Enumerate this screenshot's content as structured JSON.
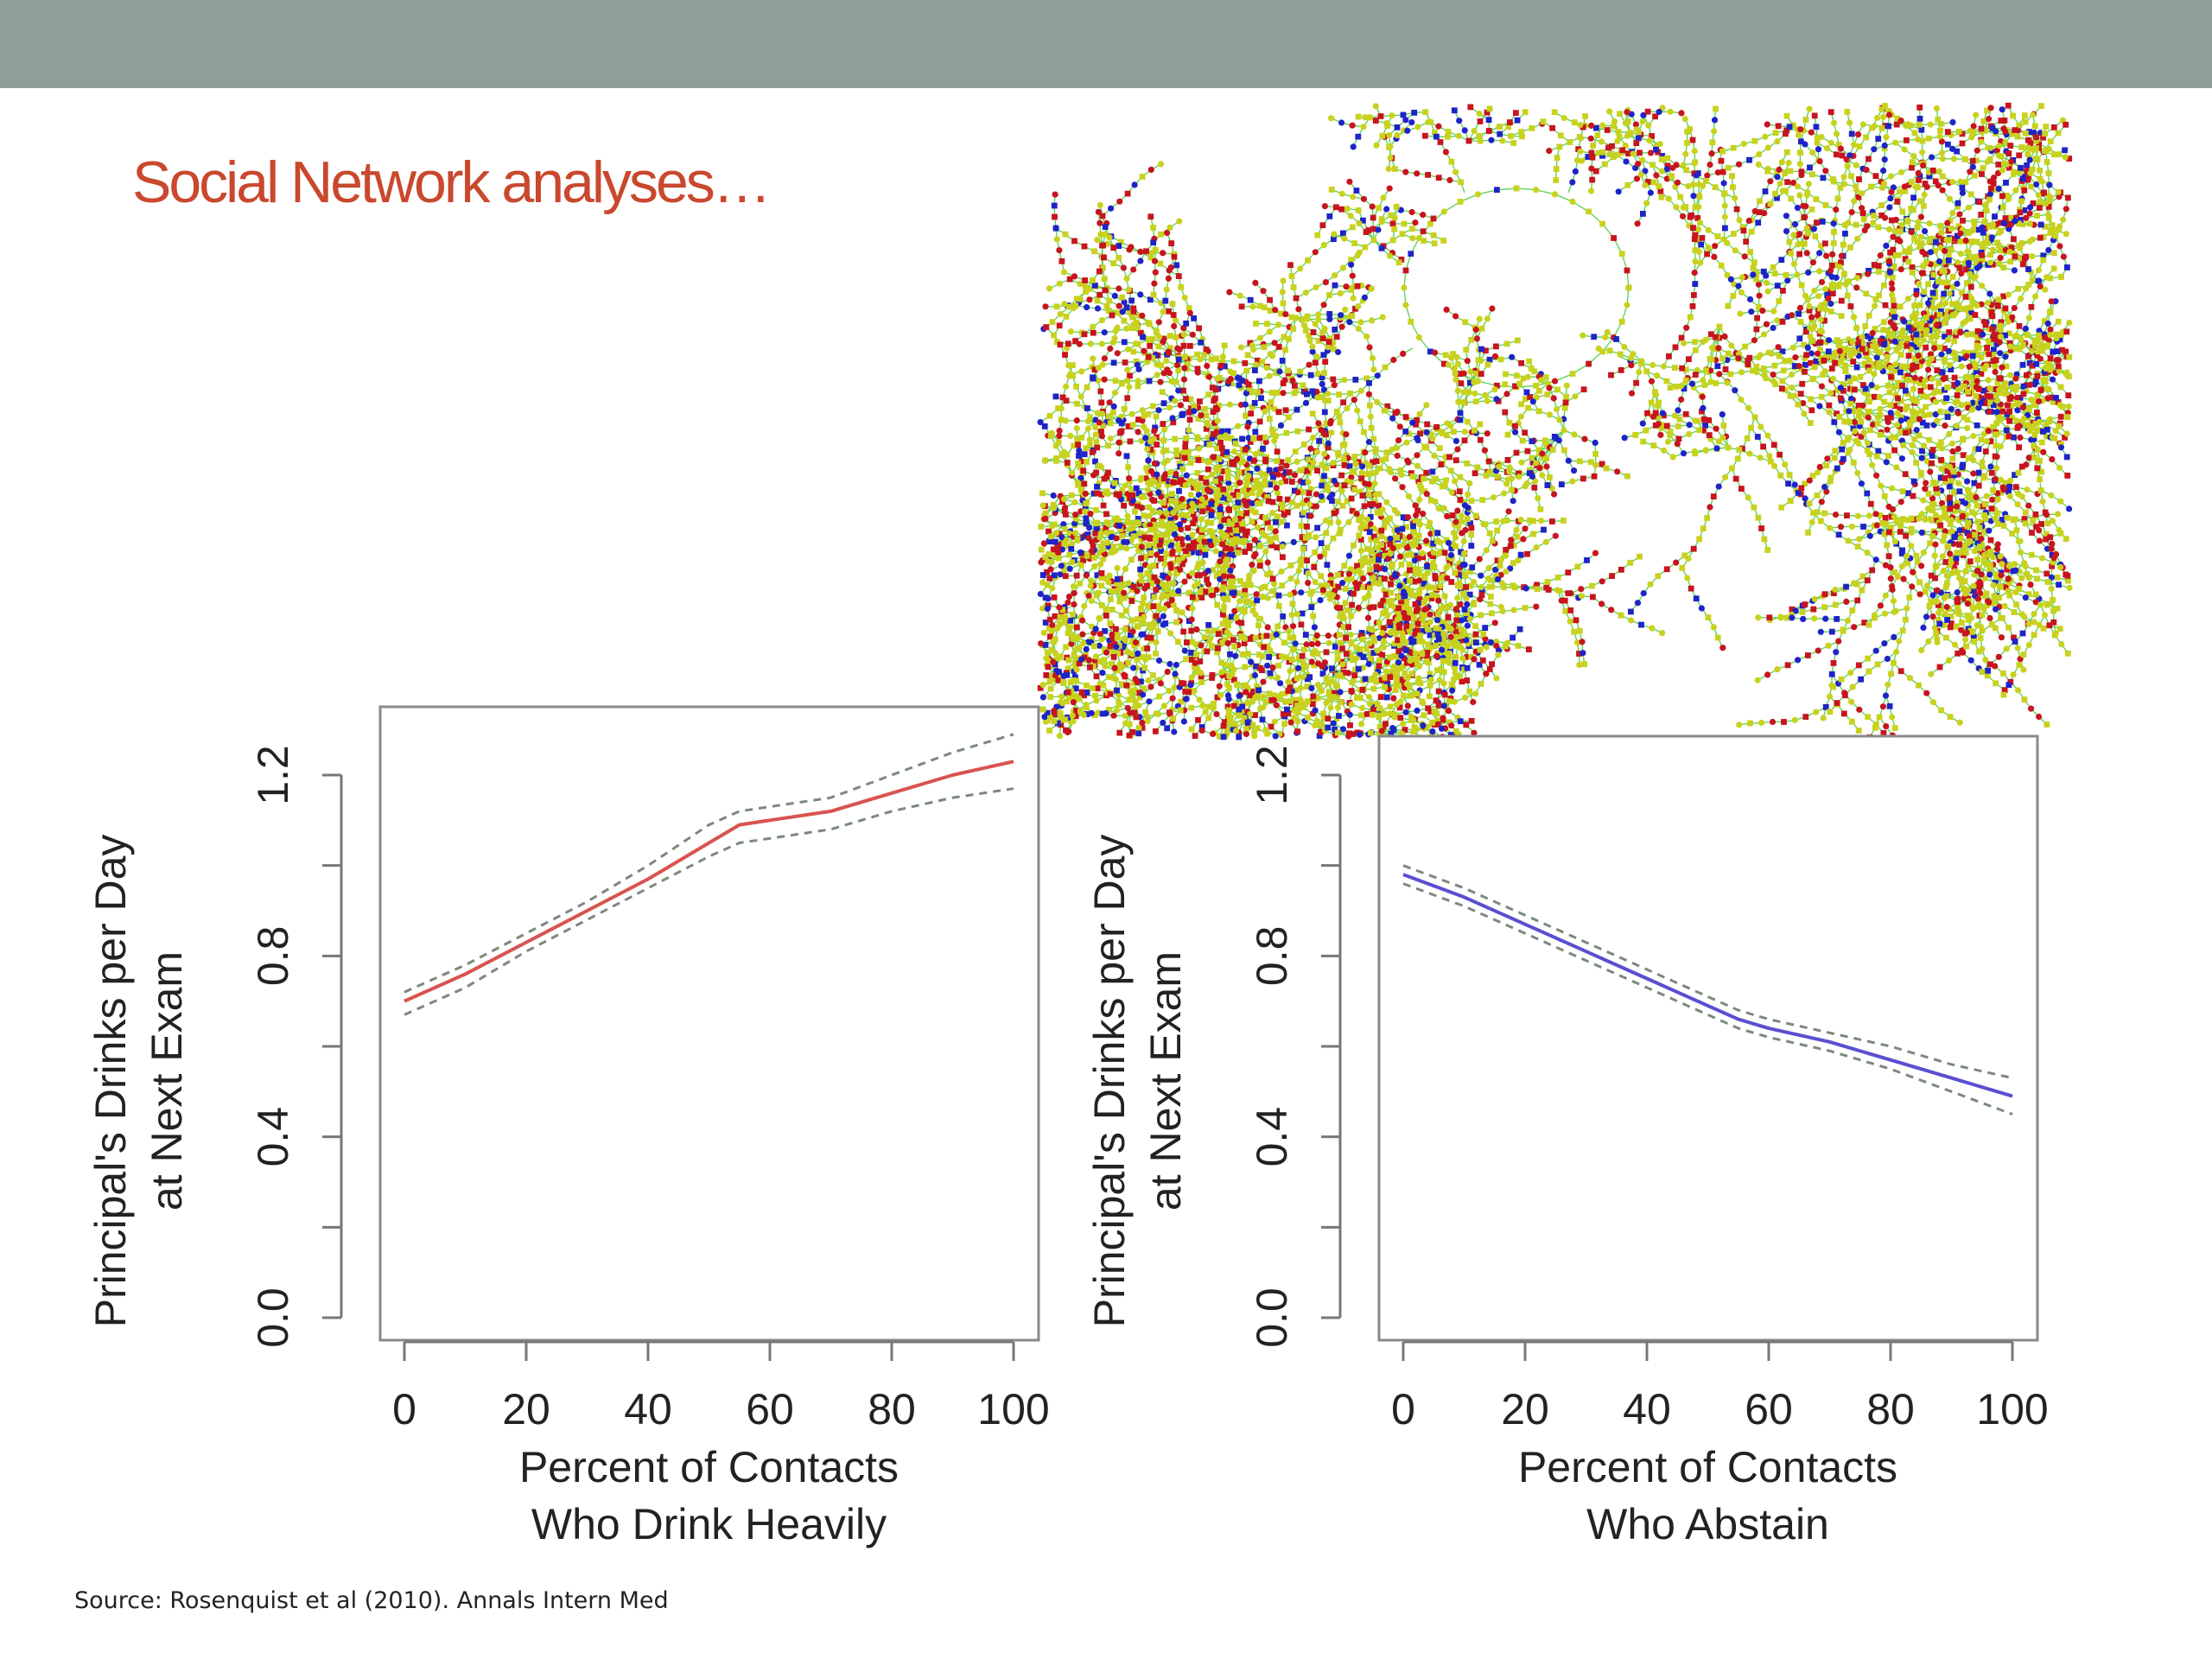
{
  "slide": {
    "title": "Social Network analyses…",
    "source": "Source: Rosenquist et al (2010). Annals Intern Med",
    "header_color": "#8f9e98",
    "title_color": "#c9482e"
  },
  "network_graph": {
    "node_colors": {
      "yellow": "#c8d21e",
      "red": "#c8141e",
      "blue": "#1e23c8",
      "link": "#5ad250"
    }
  },
  "chart_data": [
    {
      "type": "line",
      "ylabel_line1": "Principal's Drinks per Day",
      "ylabel_line2": "at Next Exam",
      "xlabel_line1": "Percent of Contacts",
      "xlabel_line2": "Who Drink Heavily",
      "xlim": [
        0,
        100
      ],
      "ylim": [
        0.0,
        1.2
      ],
      "x_ticks": [
        0,
        20,
        40,
        60,
        80,
        100
      ],
      "x_tick_labels": [
        "0",
        "20",
        "40",
        "60",
        "80",
        "100"
      ],
      "y_ticks": [
        0.0,
        0.2,
        0.4,
        0.6,
        0.8,
        1.0,
        1.2
      ],
      "y_tick_labels": [
        "0.0",
        "",
        "0.4",
        "",
        "0.8",
        "",
        "1.2"
      ],
      "line_color": "#d9534f",
      "band_color": "#7a8a7a",
      "series": [
        {
          "name": "estimate",
          "x": [
            0,
            10,
            20,
            30,
            40,
            50,
            55,
            60,
            70,
            80,
            90,
            100
          ],
          "y": [
            0.7,
            0.76,
            0.83,
            0.9,
            0.97,
            1.05,
            1.09,
            1.1,
            1.12,
            1.16,
            1.2,
            1.23
          ]
        },
        {
          "name": "upper_ci",
          "x": [
            0,
            10,
            20,
            30,
            40,
            50,
            55,
            60,
            70,
            80,
            90,
            100
          ],
          "y": [
            0.72,
            0.78,
            0.85,
            0.92,
            1.0,
            1.09,
            1.12,
            1.13,
            1.15,
            1.2,
            1.25,
            1.29
          ]
        },
        {
          "name": "lower_ci",
          "x": [
            0,
            10,
            20,
            30,
            40,
            50,
            55,
            60,
            70,
            80,
            90,
            100
          ],
          "y": [
            0.67,
            0.73,
            0.81,
            0.88,
            0.95,
            1.02,
            1.05,
            1.06,
            1.08,
            1.12,
            1.15,
            1.17
          ]
        }
      ]
    },
    {
      "type": "line",
      "ylabel_line1": "Principal's Drinks per Day",
      "ylabel_line2": "at Next Exam",
      "xlabel_line1": "Percent of Contacts",
      "xlabel_line2": "Who Abstain",
      "xlim": [
        0,
        100
      ],
      "ylim": [
        0.0,
        1.2
      ],
      "x_ticks": [
        0,
        20,
        40,
        60,
        80,
        100
      ],
      "x_tick_labels": [
        "0",
        "20",
        "40",
        "60",
        "80",
        "100"
      ],
      "y_ticks": [
        0.0,
        0.2,
        0.4,
        0.6,
        0.8,
        1.0,
        1.2
      ],
      "y_tick_labels": [
        "0.0",
        "",
        "0.4",
        "",
        "0.8",
        "",
        "1.2"
      ],
      "line_color": "#5a4fd0",
      "band_color": "#7a8a7a",
      "series": [
        {
          "name": "estimate",
          "x": [
            0,
            10,
            20,
            30,
            40,
            50,
            55,
            60,
            70,
            80,
            90,
            100
          ],
          "y": [
            0.98,
            0.93,
            0.87,
            0.81,
            0.75,
            0.69,
            0.66,
            0.64,
            0.61,
            0.57,
            0.53,
            0.49
          ]
        },
        {
          "name": "upper_ci",
          "x": [
            0,
            10,
            20,
            30,
            40,
            50,
            55,
            60,
            70,
            80,
            90,
            100
          ],
          "y": [
            1.0,
            0.95,
            0.89,
            0.83,
            0.77,
            0.71,
            0.68,
            0.66,
            0.63,
            0.6,
            0.56,
            0.53
          ]
        },
        {
          "name": "lower_ci",
          "x": [
            0,
            10,
            20,
            30,
            40,
            50,
            55,
            60,
            70,
            80,
            90,
            100
          ],
          "y": [
            0.96,
            0.91,
            0.85,
            0.79,
            0.73,
            0.67,
            0.64,
            0.62,
            0.59,
            0.55,
            0.5,
            0.45
          ]
        }
      ]
    }
  ]
}
